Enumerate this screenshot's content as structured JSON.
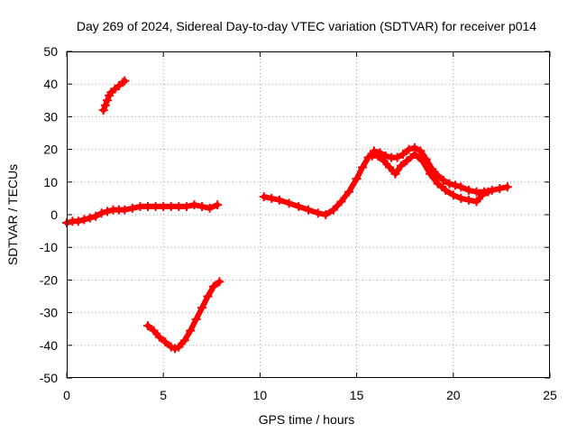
{
  "chart_data": {
    "type": "scatter",
    "title": "Day 269 of 2024, Sidereal Day-to-day VTEC variation (SDTVAR) for receiver p014",
    "xlabel": "GPS time / hours",
    "ylabel": "SDTVAR / TECUs",
    "xlim": [
      0,
      25
    ],
    "ylim": [
      -50,
      50
    ],
    "xticks": [
      "0",
      "5",
      "10",
      "15",
      "20",
      "25"
    ],
    "yticks": [
      "50",
      "40",
      "30",
      "20",
      "10",
      "0",
      "-10",
      "-20",
      "-30",
      "-40",
      "-50"
    ],
    "grid": true,
    "series_color": "#ff0000",
    "series": [
      {
        "name": "main-track",
        "x": [
          0.0,
          0.3,
          0.6,
          0.9,
          1.2,
          1.5,
          1.8,
          2.1,
          2.4,
          2.7,
          3.0,
          3.4,
          3.8,
          4.2,
          4.6,
          5.0,
          5.4,
          5.8,
          6.2,
          6.6,
          7.0,
          7.4,
          7.8
        ],
        "y": [
          -2.5,
          -2,
          -2,
          -1.5,
          -1,
          -0.5,
          0.5,
          1,
          1.5,
          1.5,
          1.5,
          2,
          2.5,
          2.5,
          2.5,
          2.5,
          2.5,
          2.5,
          2.5,
          3,
          2.5,
          2,
          3
        ]
      },
      {
        "name": "high-arc",
        "x": [
          1.9,
          2.0,
          2.1,
          2.2,
          2.3,
          2.5,
          2.7,
          2.9,
          3.0
        ],
        "y": [
          32,
          33.5,
          35,
          36.5,
          37.5,
          38.5,
          39.5,
          40.5,
          41
        ]
      },
      {
        "name": "low-dip",
        "x": [
          4.2,
          4.5,
          4.8,
          5.1,
          5.4,
          5.6,
          5.8,
          6.1,
          6.4,
          6.7,
          7.0,
          7.3,
          7.6,
          7.9
        ],
        "y": [
          -34,
          -35.5,
          -37.5,
          -39,
          -40.5,
          -41,
          -40.5,
          -38.5,
          -35.5,
          -32,
          -28.5,
          -25,
          -22,
          -20.5
        ]
      },
      {
        "name": "afternoon-track",
        "x": [
          10.2,
          10.6,
          11.0,
          11.5,
          12.0,
          12.5,
          13.0,
          13.4,
          13.8,
          14.2,
          14.6,
          15.0,
          15.3,
          15.6,
          15.9,
          16.2,
          16.5,
          16.8,
          17.1,
          17.4,
          17.7,
          18.0,
          18.3,
          18.6,
          18.9,
          19.2,
          19.5,
          19.8,
          20.1,
          20.4,
          20.8,
          21.2,
          21.6,
          22.0,
          22.4,
          22.8
        ],
        "y": [
          5.5,
          5,
          4.5,
          3.5,
          2.5,
          1.5,
          0.5,
          0,
          1.5,
          4,
          7,
          11,
          14.5,
          17.5,
          19.5,
          19,
          18,
          17.5,
          17.5,
          18.5,
          20,
          20.5,
          19.5,
          17,
          14,
          12,
          10.5,
          9.5,
          9,
          8.5,
          7.5,
          7,
          7,
          7.5,
          8,
          8.5
        ]
      },
      {
        "name": "afternoon-branch",
        "x": [
          15.8,
          16.1,
          16.4,
          16.7,
          17.0,
          17.3,
          17.6,
          18.0,
          18.4,
          18.8,
          19.2,
          19.6,
          20.0,
          20.4,
          20.8,
          21.2,
          21.5,
          21.8
        ],
        "y": [
          18,
          18,
          16.5,
          14.5,
          12.5,
          15,
          16.5,
          18.5,
          16.5,
          12.5,
          9.5,
          7.5,
          6,
          5,
          4.5,
          4,
          6,
          7
        ]
      }
    ]
  }
}
